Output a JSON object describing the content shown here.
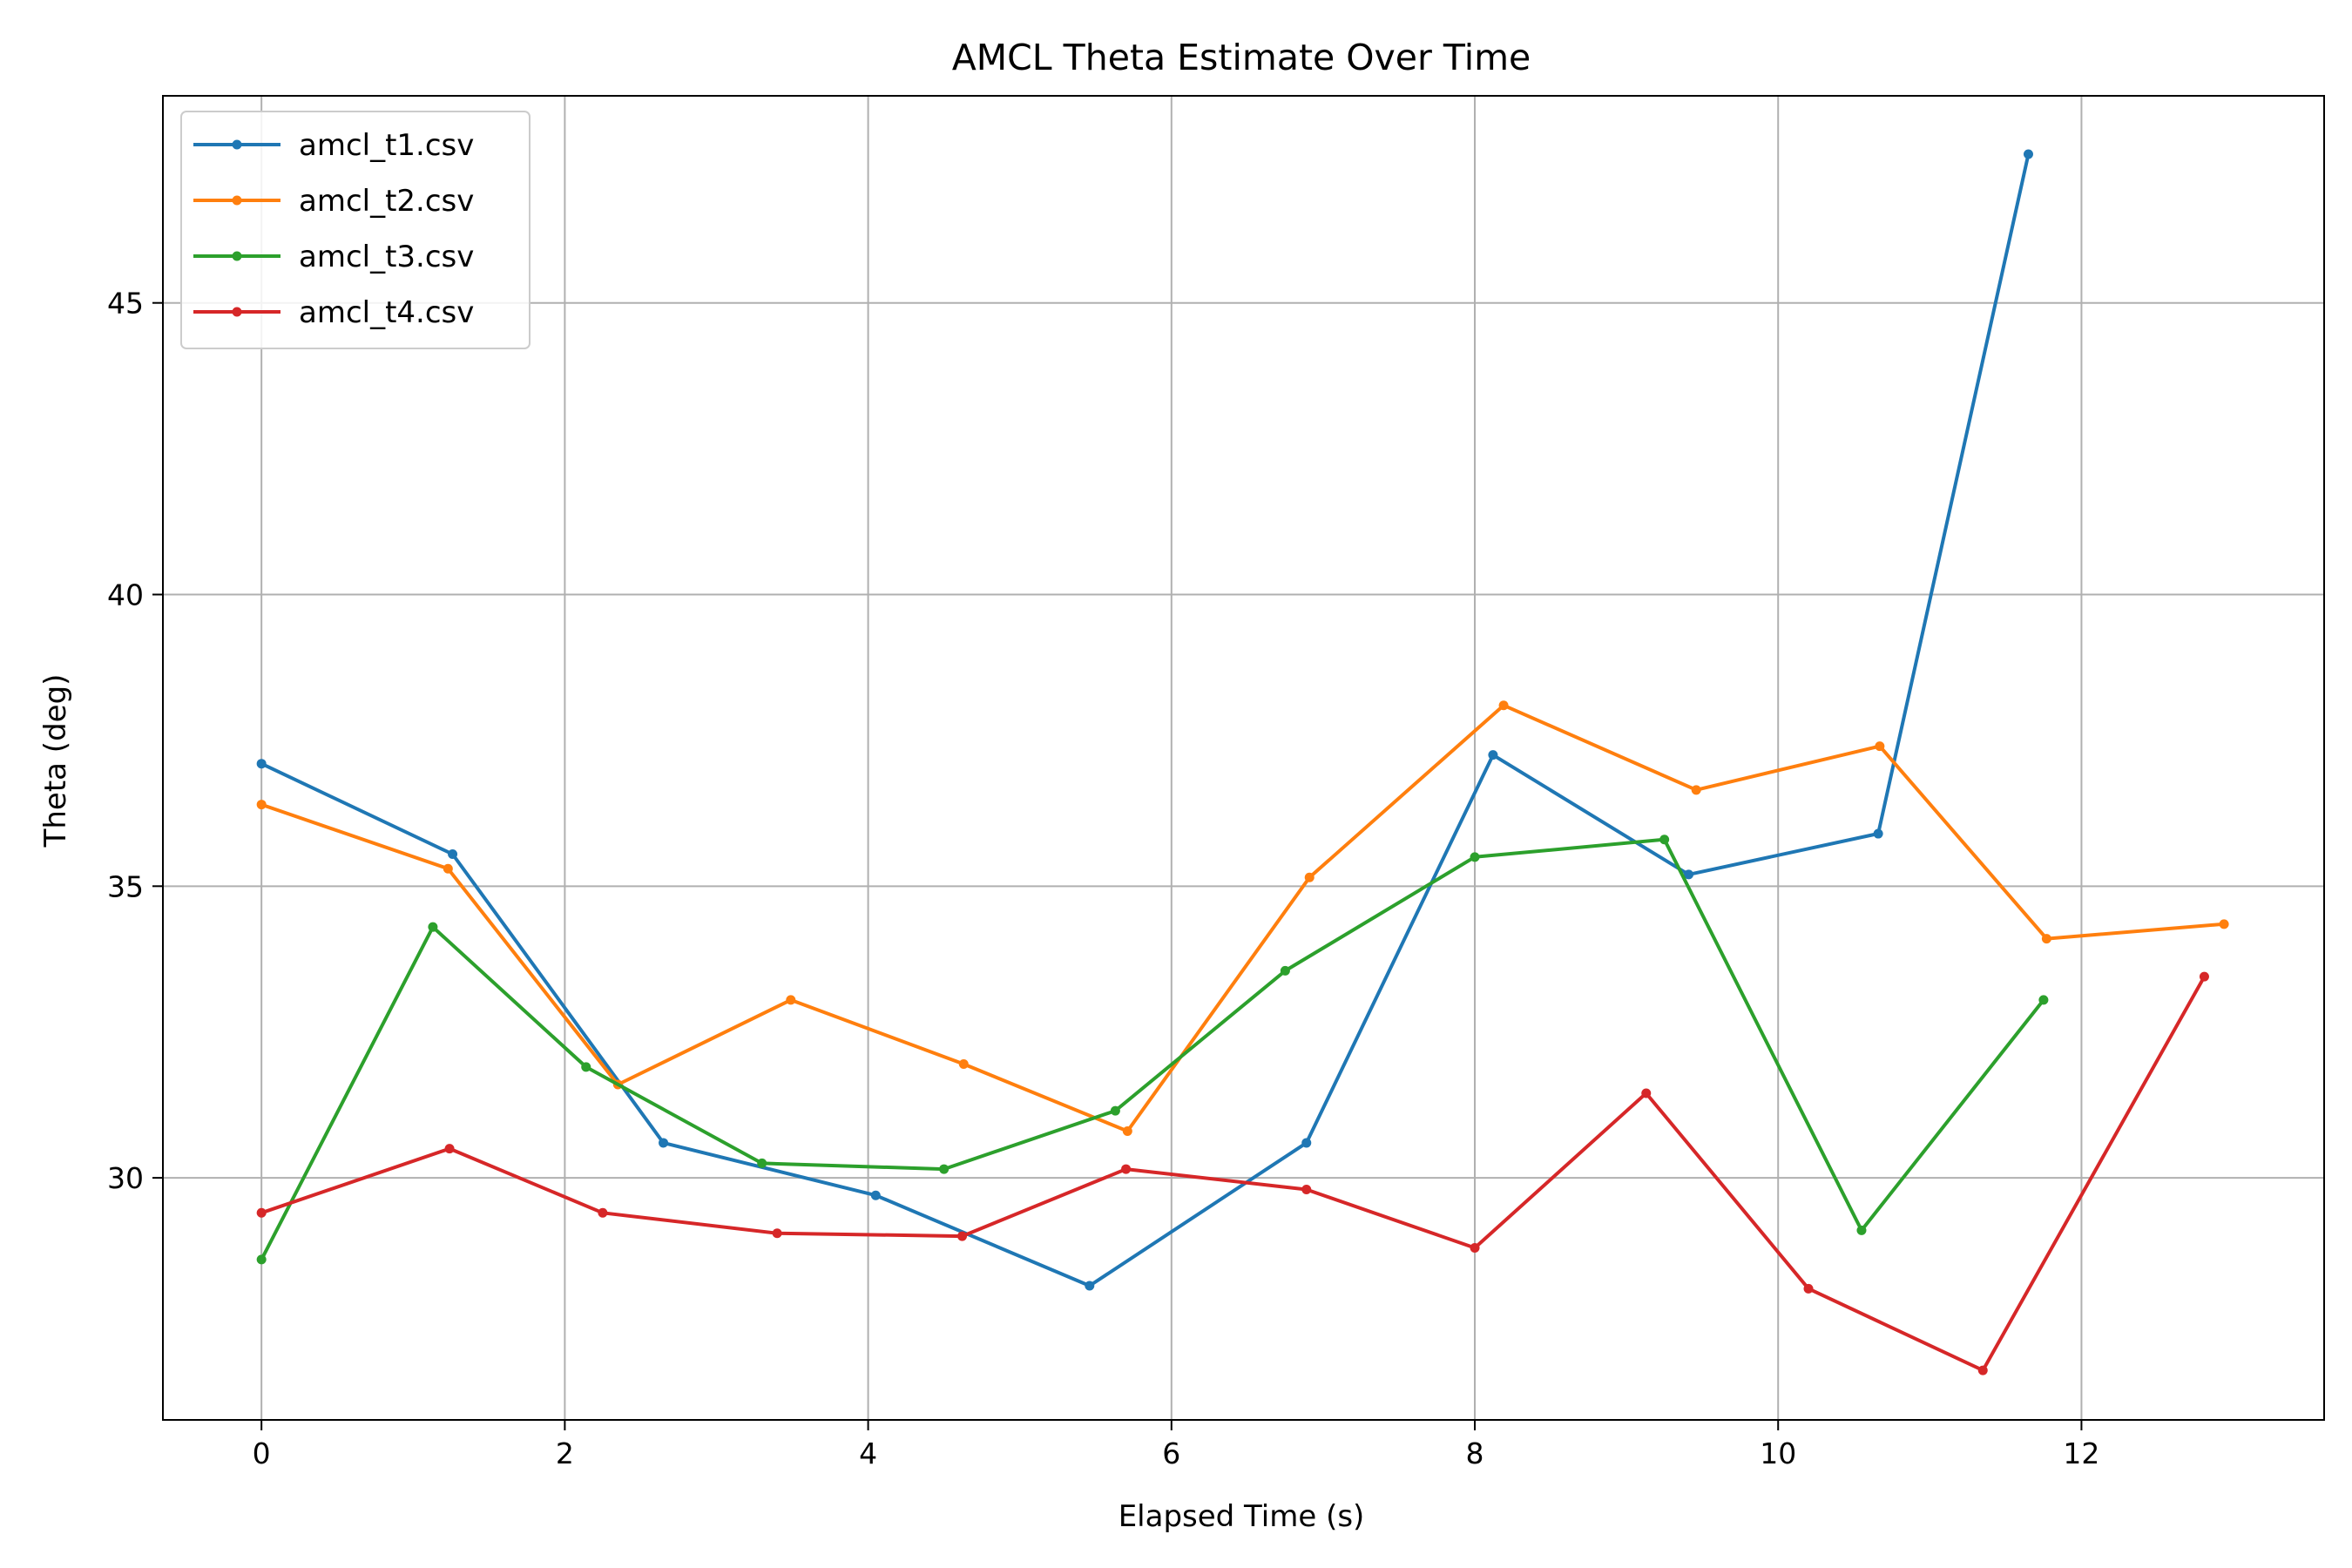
{
  "chart_data": {
    "type": "line",
    "title": "AMCL Theta Estimate Over Time",
    "xlabel": "Elapsed Time (s)",
    "ylabel": "Theta (deg)",
    "xlim": [
      -0.65,
      13.6
    ],
    "ylim": [
      25.85,
      48.55
    ],
    "xticks": [
      0,
      2,
      4,
      6,
      8,
      10,
      12
    ],
    "yticks": [
      30,
      35,
      40,
      45
    ],
    "grid": true,
    "legend_position": "top-left",
    "series": [
      {
        "name": "amcl_t1.csv",
        "color": "#1f77b4",
        "x": [
          0.0,
          1.26,
          2.65,
          4.05,
          5.46,
          6.89,
          8.12,
          9.41,
          10.66,
          11.65
        ],
        "y": [
          37.1,
          35.55,
          30.6,
          29.7,
          28.15,
          30.6,
          37.25,
          35.2,
          35.9,
          47.55
        ]
      },
      {
        "name": "amcl_t2.csv",
        "color": "#ff7f0e",
        "x": [
          0.0,
          1.23,
          2.35,
          3.49,
          4.63,
          5.71,
          6.91,
          8.19,
          9.46,
          10.67,
          11.77,
          12.94
        ],
        "y": [
          36.4,
          35.3,
          31.6,
          33.05,
          31.95,
          30.8,
          35.15,
          38.1,
          36.65,
          37.4,
          34.1,
          34.35
        ]
      },
      {
        "name": "amcl_t3.csv",
        "color": "#2ca02c",
        "x": [
          0.0,
          1.13,
          2.14,
          3.3,
          4.5,
          5.63,
          6.75,
          8.0,
          9.25,
          10.55,
          11.75
        ],
        "y": [
          28.6,
          34.3,
          31.9,
          30.25,
          30.15,
          31.15,
          33.55,
          35.5,
          35.8,
          29.1,
          33.05
        ]
      },
      {
        "name": "amcl_t4.csv",
        "color": "#d62728",
        "x": [
          0.0,
          1.24,
          2.25,
          3.4,
          4.62,
          5.7,
          6.89,
          8.0,
          9.13,
          10.2,
          11.35,
          12.81
        ],
        "y": [
          29.4,
          30.5,
          29.4,
          29.05,
          29.0,
          30.15,
          29.8,
          28.8,
          31.45,
          28.1,
          26.7,
          33.45
        ]
      }
    ]
  }
}
